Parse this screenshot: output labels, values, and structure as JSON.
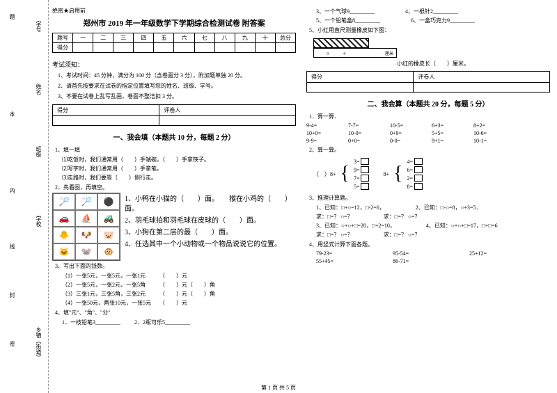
{
  "binding": {
    "labels": [
      "学号",
      "姓名",
      "班级",
      "学校",
      "乡镇（街道）"
    ],
    "marks": [
      "题",
      "本",
      "内",
      "线",
      "封",
      "密"
    ]
  },
  "secret": "绝密★启用前",
  "title": "郑州市 2019 年一年级数学下学期综合检测试卷 附答案",
  "score_header": [
    "题号",
    "一",
    "二",
    "三",
    "四",
    "五",
    "六",
    "七",
    "八",
    "九",
    "十",
    "总分"
  ],
  "score_row_label": "得分",
  "notice_title": "考试须知：",
  "notices": [
    "1、考试时间：45 分钟，满分为 100 分（含卷面分 3 分），附加题单独 20 分。",
    "2、请首先按要求在试卷的指定位置填写您的姓名、班级、学号。",
    "3、不要在试卷上乱写乱画，卷面不整洁扣 3 分。"
  ],
  "scorebox": [
    "得分",
    "评卷人"
  ],
  "section1": {
    "title": "一、我会填（本题共 10 分，每题 2 分）",
    "q1": "1、填一填",
    "q1_items": [
      "⑴吃饭时，我们通常用（　　）手端碗，（　　）手拿筷子。",
      "⑵写字时，我们通常用（　　）手拿笔。",
      "⑶走路时，我们要靠（　　）侧行走。"
    ],
    "q2": "2．先看图，再填空。",
    "q2_big": [
      "1、小鸭在小猫的（　　）面。　　猴在小鸡的（　　）面。",
      "2、羽毛球拍和羽毛球在皮球的（　　）面。",
      "3、小狗在第二层的最（　　）面。",
      "4、任选其中一个小动物或一个物品说说它的位置。"
    ],
    "q3": "3、写出下面的钱数。",
    "q3_items": [
      "（1）一张5元，一张5元，一张1元　　　（　　）元",
      "（2）一张5元，一张2元，一张5角　　　（　　）元（　　）角",
      "（3）三张1元，三张5角，三张2元　　　（　　）元（　　）角",
      "（4）一张50元，两张10元，一张5元　　（　　）元"
    ],
    "q4": "4、填\"元\"、\"角\"、\"分\"",
    "q4_items": [
      "1．一枝铅笔3_________",
      "2．2瓶可乐5_________"
    ]
  },
  "right_top": {
    "items": [
      "3、一个气球9_________",
      "4、一根针2_________",
      "5、一个铅笔盒8_________",
      "6、一盒巧克力9_________"
    ],
    "q5": "5、小红用直尺测量橡皮如下图：",
    "caption": "小红的橡皮长（　　）厘米。",
    "ruler_marks": [
      "3",
      "4",
      "厘米"
    ]
  },
  "section2": {
    "title": "二、我会算（本题共 20 分，每题 5 分）",
    "q1": "1．算一算．",
    "calc": [
      "9-4=",
      "7-7=",
      "10-5=",
      "6+3=",
      "8+2=",
      "10+0=",
      "10-0=",
      "0+9=",
      "5+5=",
      "10-6=",
      "9-9=",
      "0+0=",
      "0-0=",
      "9+1=",
      "10-1="
    ],
    "q2": "2、算一算。",
    "bracket_left_label": "（　）8+",
    "bracket_left": [
      "3=",
      "9=",
      "7=",
      "5="
    ],
    "bracket_right_label": "8+",
    "bracket_right": [
      "4=",
      "6=",
      "2=",
      "8="
    ],
    "q3": "3、推理计算题。",
    "q3_items": [
      {
        "l": "1、已知：□+○=12，□-2=6，",
        "r": "2、已知：□-○=8，○+3=5．"
      },
      {
        "l": "求：□=？ ○=？",
        "r": "求：□=？ ○=？"
      },
      {
        "l": "3、已知：○+○+□=20，□+2=10，",
        "r": "4、已知：○+○+□=17，□+□=6"
      },
      {
        "l": "求：□=？ ○=？",
        "r": "求：□=？ ○=？"
      }
    ],
    "q4": "4、用竖式计算下面各题。",
    "q4_items": [
      "79-23=",
      "95-54=",
      "25+12=",
      "55+45=",
      "86-71="
    ]
  },
  "footer": "第 1 页 共 5 页"
}
